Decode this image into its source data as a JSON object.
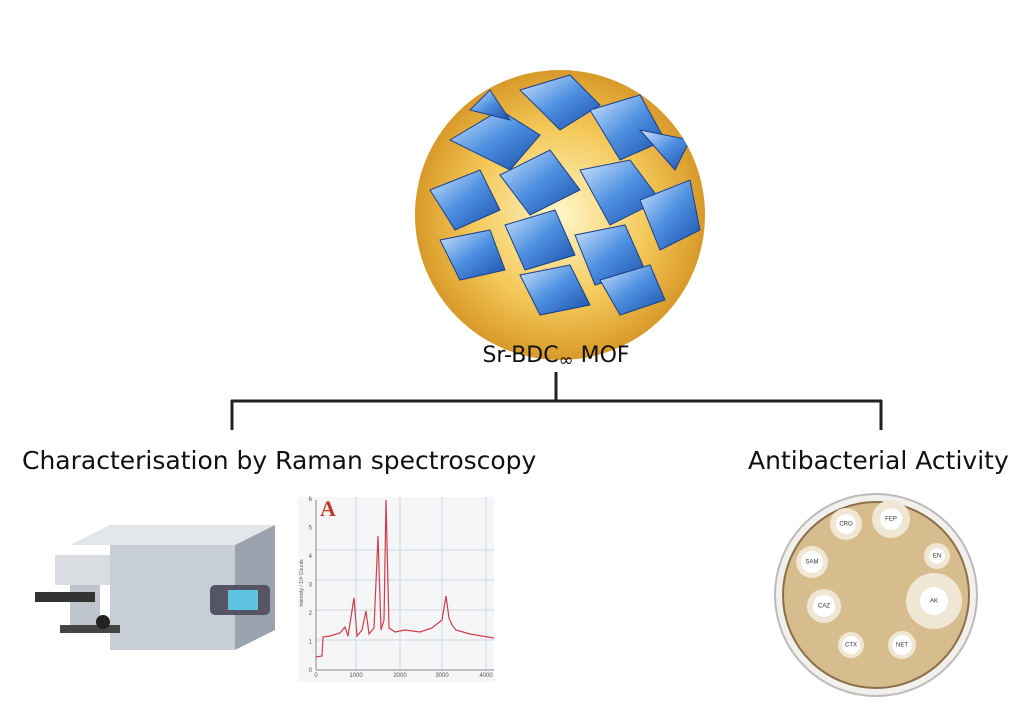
{
  "center": {
    "label": "Sr-BDC",
    "subscript": "∞",
    "label_suffix": " MOF"
  },
  "branches": [
    {
      "title": "Characterisation by Raman spectroscopy"
    },
    {
      "title": "Antibacterial Activity"
    }
  ],
  "spectrum": {
    "panel": "A",
    "y_label": "Intensity / 10³ Counts",
    "x_ticks": [
      "0",
      "1000",
      "2000",
      "3000",
      "4000"
    ],
    "y_ticks": [
      "0",
      "1",
      "2",
      "3",
      "4",
      "5",
      "6"
    ]
  },
  "petri_dish": {
    "disks": [
      "CRO",
      "FEP",
      "EN",
      "SAM",
      "AK",
      "CAZ",
      "CTX",
      "NET"
    ]
  }
}
